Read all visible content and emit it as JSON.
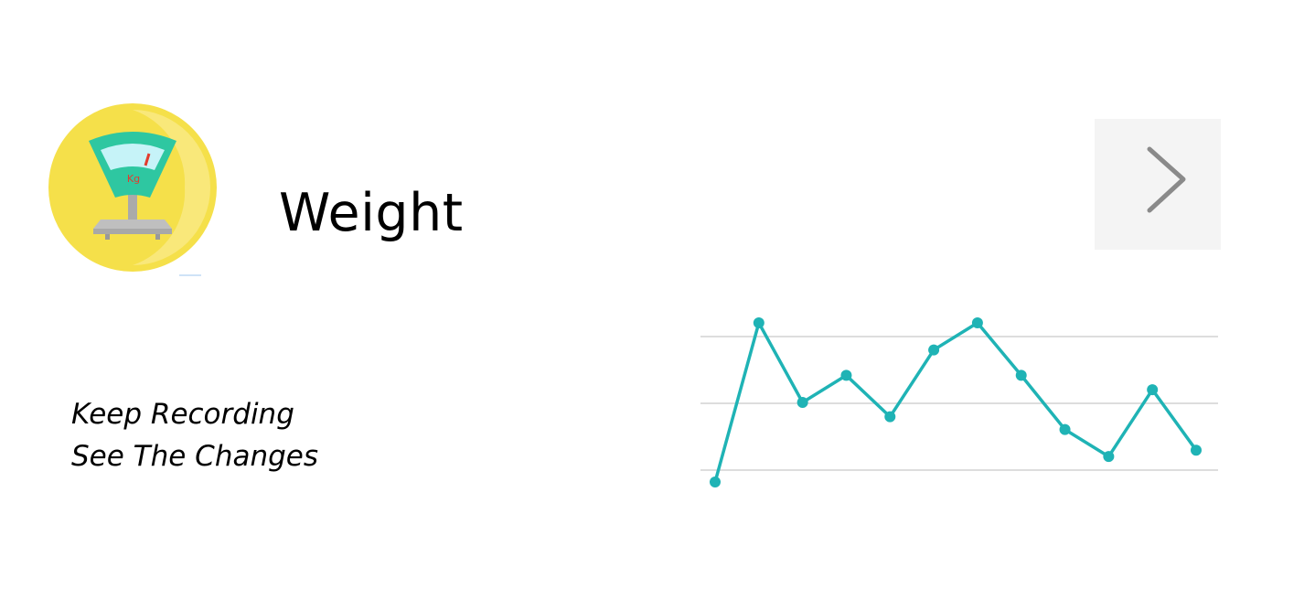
{
  "card": {
    "title": "Weight",
    "tagline": [
      "Keep Recording",
      "See The Changes"
    ],
    "icon_name": "weighing-scale-icon",
    "icon_label": "Kg",
    "next_icon_name": "chevron-right-icon"
  },
  "colors": {
    "icon_circle": "#f5e04a",
    "icon_circle_light": "#fbeb8e",
    "scale_body": "#2ec7a1",
    "scale_screen": "#c6f3f8",
    "scale_base": "#bfbfbf",
    "scale_needle": "#e23b2e",
    "chart_line": "#1fb3b5",
    "gridline": "#dddddd",
    "button_bg": "#f4f4f4",
    "chevron": "#888888"
  },
  "chart_data": {
    "type": "line",
    "grid": true,
    "y_gridlines": 3,
    "x": [
      1,
      2,
      3,
      4,
      5,
      6,
      7,
      8,
      9,
      10,
      11,
      12
    ],
    "values": [
      0.0,
      1.0,
      0.5,
      0.67,
      0.41,
      0.83,
      1.0,
      0.67,
      0.33,
      0.16,
      0.58,
      0.2
    ],
    "ylim": [
      0.0,
      1.0
    ]
  }
}
